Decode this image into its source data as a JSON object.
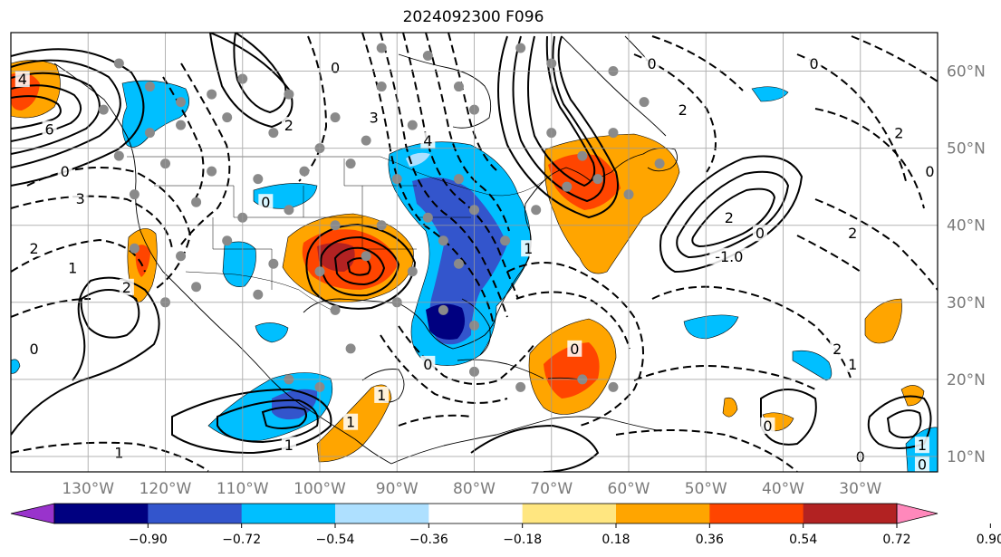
{
  "title": "2024092300 F096",
  "map": {
    "lon_range": [
      -140,
      -20
    ],
    "lat_range": [
      8,
      65
    ],
    "lat_labels": [
      {
        "lat": 60,
        "text": "60°N"
      },
      {
        "lat": 50,
        "text": "50°N"
      },
      {
        "lat": 40,
        "text": "40°N"
      },
      {
        "lat": 30,
        "text": "30°N"
      },
      {
        "lat": 20,
        "text": "20°N"
      },
      {
        "lat": 10,
        "text": "10°N"
      }
    ],
    "lon_labels": [
      {
        "lon": -130,
        "text": "130°W"
      },
      {
        "lon": -120,
        "text": "120°W"
      },
      {
        "lon": -110,
        "text": "110°W"
      },
      {
        "lon": -100,
        "text": "100°W"
      },
      {
        "lon": -90,
        "text": "90°W"
      },
      {
        "lon": -80,
        "text": "80°W"
      },
      {
        "lon": -70,
        "text": "70°W"
      },
      {
        "lon": -60,
        "text": "60°W"
      },
      {
        "lon": -50,
        "text": "50°W"
      },
      {
        "lon": -40,
        "text": "40°W"
      },
      {
        "lon": -30,
        "text": "30°W"
      }
    ],
    "contour_labels": [
      {
        "lon": -138.5,
        "lat": 59,
        "text": "4"
      },
      {
        "lon": -135,
        "lat": 52.5,
        "text": "6"
      },
      {
        "lon": -133,
        "lat": 47,
        "text": "0"
      },
      {
        "lon": -131,
        "lat": 43.5,
        "text": "3"
      },
      {
        "lon": -137,
        "lat": 37,
        "text": "2"
      },
      {
        "lon": -132,
        "lat": 34.5,
        "text": "1"
      },
      {
        "lon": -125,
        "lat": 32,
        "text": "2"
      },
      {
        "lon": -104,
        "lat": 53,
        "text": "2"
      },
      {
        "lon": -107,
        "lat": 43,
        "text": "0"
      },
      {
        "lon": -98,
        "lat": 60.5,
        "text": "0"
      },
      {
        "lon": -93,
        "lat": 54,
        "text": "3"
      },
      {
        "lon": -86,
        "lat": 51,
        "text": "4"
      },
      {
        "lon": -73,
        "lat": 37,
        "text": "1"
      },
      {
        "lon": -57,
        "lat": 61,
        "text": "0"
      },
      {
        "lon": -53,
        "lat": 55,
        "text": "2"
      },
      {
        "lon": -47,
        "lat": 41,
        "text": "2"
      },
      {
        "lon": -47,
        "lat": 36,
        "text": "-1.0"
      },
      {
        "lon": -43,
        "lat": 39,
        "text": "0"
      },
      {
        "lon": -36,
        "lat": 61,
        "text": "0"
      },
      {
        "lon": -25,
        "lat": 52,
        "text": "2"
      },
      {
        "lon": -21,
        "lat": 47,
        "text": "0"
      },
      {
        "lon": -31,
        "lat": 39,
        "text": "2"
      },
      {
        "lon": -33,
        "lat": 24,
        "text": "2"
      },
      {
        "lon": -31,
        "lat": 22,
        "text": "1"
      },
      {
        "lon": -67,
        "lat": 24,
        "text": "0"
      },
      {
        "lon": -86,
        "lat": 22,
        "text": "0"
      },
      {
        "lon": -92,
        "lat": 18,
        "text": "1"
      },
      {
        "lon": -96,
        "lat": 14.5,
        "text": "1"
      },
      {
        "lon": -104,
        "lat": 11.5,
        "text": "1"
      },
      {
        "lon": -126,
        "lat": 10.5,
        "text": "1"
      },
      {
        "lon": -30,
        "lat": 10,
        "text": "0"
      },
      {
        "lon": -22,
        "lat": 11.5,
        "text": "1"
      },
      {
        "lon": -42,
        "lat": 14,
        "text": "0"
      },
      {
        "lon": -22,
        "lat": 9,
        "text": "0"
      },
      {
        "lon": -137,
        "lat": 24,
        "text": "0"
      }
    ]
  },
  "colorbar": {
    "colors": [
      "#9933cc",
      "#000080",
      "#3355cc",
      "#00bfff",
      "#aee0ff",
      "#ffffff",
      "#ffe680",
      "#ffa500",
      "#ff4500",
      "#b22222",
      "#ff88bb"
    ],
    "tick_labels": [
      "−0.90",
      "−0.72",
      "−0.54",
      "−0.36",
      "−0.18",
      "0.18",
      "0.36",
      "0.54",
      "0.72",
      "0.90"
    ]
  }
}
